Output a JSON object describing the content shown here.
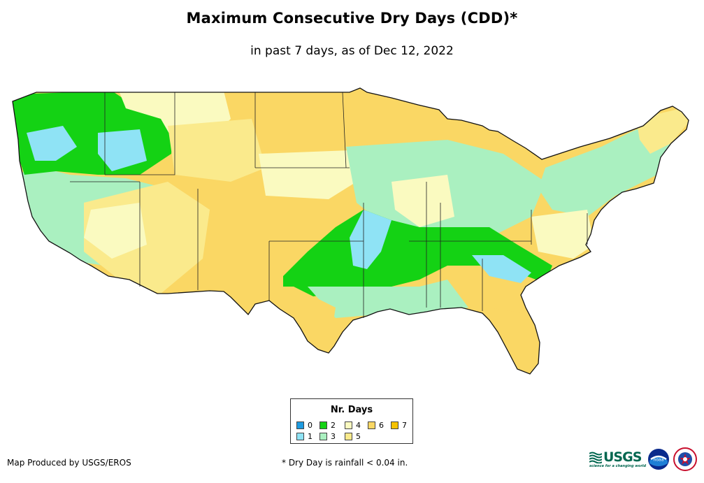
{
  "title": "Maximum Consecutive Dry Days (CDD)*",
  "subtitle": "in past 7 days, as of Dec 12, 2022",
  "legend": {
    "title": "Nr. Days",
    "items": [
      {
        "label": "0",
        "color": "#1e9be0"
      },
      {
        "label": "1",
        "color": "#8fe3f5"
      },
      {
        "label": "2",
        "color": "#14d214"
      },
      {
        "label": "3",
        "color": "#aaf0c0"
      },
      {
        "label": "4",
        "color": "#fafac0"
      },
      {
        "label": "5",
        "color": "#faea8c"
      },
      {
        "label": "6",
        "color": "#fad764"
      },
      {
        "label": "7",
        "color": "#f5c200"
      }
    ]
  },
  "credit": "Map Produced by USGS/EROS",
  "footnote": "* Dry Day is rainfall < 0.04 in.",
  "logos": {
    "usgs_name": "USGS",
    "usgs_tagline": "science for a changing world",
    "noaa_name": "noaa",
    "nws_name": "national weather service"
  }
}
